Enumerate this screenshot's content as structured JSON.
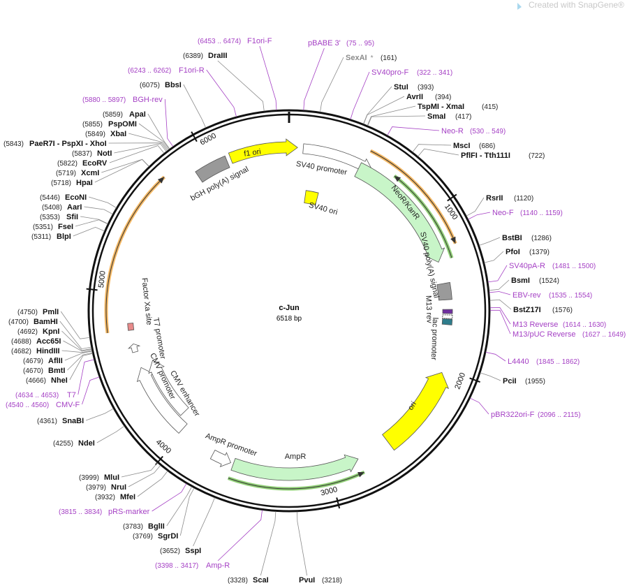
{
  "watermark": "Created with SnapGene®",
  "map": {
    "title": "c-Jun",
    "length": "6518 bp",
    "ticks": [
      1000,
      2000,
      3000,
      4000,
      5000,
      6000
    ]
  },
  "features": [
    {
      "label": "f1 ori"
    },
    {
      "label": "SV40 promoter"
    },
    {
      "label": "bGH poly(A) signal"
    },
    {
      "label": "SV40 ori"
    },
    {
      "label": "NeoR/KanR"
    },
    {
      "label": "SV40 poly(A) signal"
    },
    {
      "label": "M13 rev"
    },
    {
      "label": "lac promoter"
    },
    {
      "label": "ori"
    },
    {
      "label": "AmpR"
    },
    {
      "label": "AmpR promoter"
    },
    {
      "label": "CMV enhancer"
    },
    {
      "label": "CMV promoter"
    },
    {
      "label": "T7 promoter"
    },
    {
      "label": "Factor Xa site"
    }
  ],
  "enzymes": [
    {
      "name": "DraIII",
      "pos": "(6389)"
    },
    {
      "name": "BbsI",
      "pos": "(6075)"
    },
    {
      "name": "ApaI",
      "pos": "(5859)"
    },
    {
      "name": "PspOMI",
      "pos": "(5855)"
    },
    {
      "name": "XbaI",
      "pos": "(5849)"
    },
    {
      "name": "PaeR7I  - PspXI  - XhoI",
      "pos": "(5843)"
    },
    {
      "name": "NotI",
      "pos": "(5837)"
    },
    {
      "name": "EcoRV",
      "pos": "(5822)"
    },
    {
      "name": "XcmI",
      "pos": "(5719)"
    },
    {
      "name": "HpaI",
      "pos": "(5718)"
    },
    {
      "name": "EcoNI",
      "pos": "(5446)"
    },
    {
      "name": "AarI",
      "pos": "(5408)"
    },
    {
      "name": "SfiI",
      "pos": "(5353)"
    },
    {
      "name": "FseI",
      "pos": "(5351)"
    },
    {
      "name": "BlpI",
      "pos": "(5311)"
    },
    {
      "name": "PmlI",
      "pos": "(4750)"
    },
    {
      "name": "BamHI",
      "pos": "(4700)"
    },
    {
      "name": "KpnI",
      "pos": "(4692)"
    },
    {
      "name": "Acc65I",
      "pos": "(4688)"
    },
    {
      "name": "HindIII",
      "pos": "(4682)"
    },
    {
      "name": "AflII",
      "pos": "(4679)"
    },
    {
      "name": "BmtI",
      "pos": "(4670)"
    },
    {
      "name": "NheI",
      "pos": "(4666)"
    },
    {
      "name": "SnaBI",
      "pos": "(4361)"
    },
    {
      "name": "NdeI",
      "pos": "(4255)"
    },
    {
      "name": "MluI",
      "pos": "(3999)"
    },
    {
      "name": "NruI",
      "pos": "(3979)"
    },
    {
      "name": "MfeI",
      "pos": "(3932)"
    },
    {
      "name": "BglII",
      "pos": "(3783)"
    },
    {
      "name": "SgrDI",
      "pos": "(3769)"
    },
    {
      "name": "SspI",
      "pos": "(3652)"
    },
    {
      "name": "ScaI",
      "pos": "(3328)"
    },
    {
      "name": "PvuI",
      "pos": "(3218)"
    },
    {
      "name": "SexAI",
      "pos": "(161)",
      "mark": "*",
      "color": "#8a8a8a"
    },
    {
      "name": "StuI",
      "pos": "(393)"
    },
    {
      "name": "AvrII",
      "pos": "(394)"
    },
    {
      "name": "TspMI  - XmaI",
      "pos": "(415)"
    },
    {
      "name": "SmaI",
      "pos": "(417)"
    },
    {
      "name": "MscI",
      "pos": "(686)"
    },
    {
      "name": "PflFI  - Tth111I",
      "pos": "(722)"
    },
    {
      "name": "RsrII",
      "pos": "(1120)"
    },
    {
      "name": "BstBI",
      "pos": "(1286)"
    },
    {
      "name": "PfoI",
      "pos": "(1379)"
    },
    {
      "name": "BsmI",
      "pos": "(1524)"
    },
    {
      "name": "BstZ17I",
      "pos": "(1576)"
    },
    {
      "name": "PciI",
      "pos": "(1955)"
    }
  ],
  "primer_color": "#a43fc4",
  "primers": [
    {
      "name": "F1ori-F",
      "range": "(6453 .. 6474)"
    },
    {
      "name": "F1ori-R",
      "range": "(6243 .. 6262)"
    },
    {
      "name": "BGH-rev",
      "range": "(5880 .. 5897)"
    },
    {
      "name": "T7",
      "range": "(4634 .. 4653)"
    },
    {
      "name": "CMV-F",
      "range": "(4540 .. 4560)"
    },
    {
      "name": "pRS-marker",
      "range": "(3815 .. 3834)"
    },
    {
      "name": "Amp-R",
      "range": "(3398 .. 3417)"
    },
    {
      "name": "pBABE 3'",
      "range": "(75 .. 95)"
    },
    {
      "name": "SV40pro-F",
      "range": "(322 .. 341)"
    },
    {
      "name": "Neo-R",
      "range": "(530 .. 549)"
    },
    {
      "name": "Neo-F",
      "range": "(1140 .. 1159)"
    },
    {
      "name": "SV40pA-R",
      "range": "(1481 .. 1500)"
    },
    {
      "name": "EBV-rev",
      "range": "(1535 .. 1554)"
    },
    {
      "name": "M13 Reverse",
      "range": "(1614 .. 1630)"
    },
    {
      "name": "M13/pUC Reverse",
      "range": "(1627 .. 1649)"
    },
    {
      "name": "L4440",
      "range": "(1845 .. 1862)"
    },
    {
      "name": "pBR322ori-F",
      "range": "(2096 .. 2115)"
    }
  ]
}
